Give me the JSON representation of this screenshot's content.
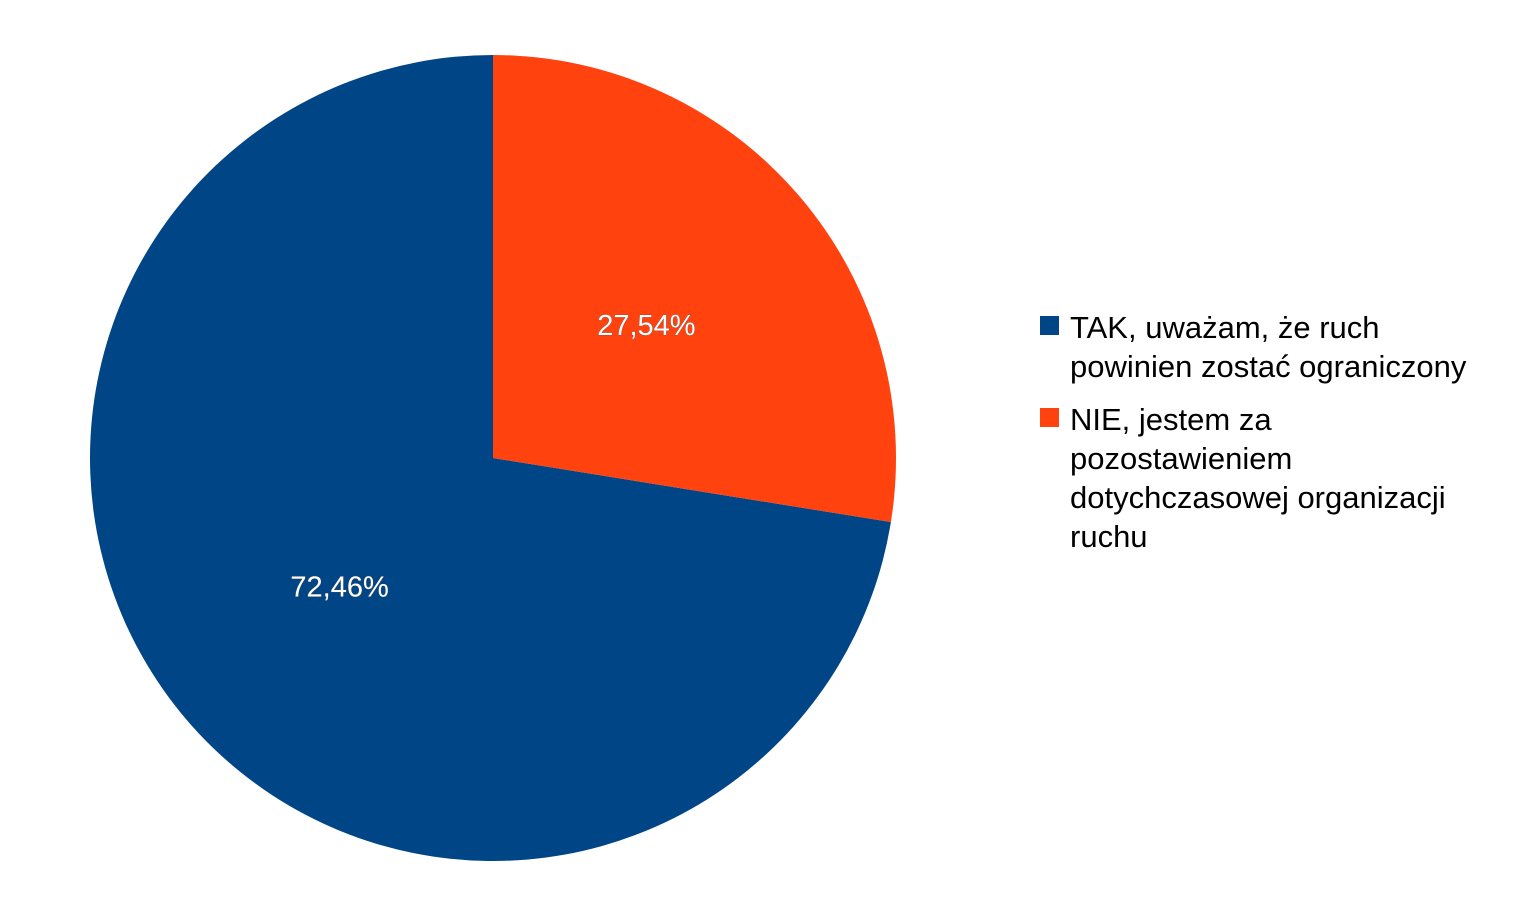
{
  "chart_data": {
    "type": "pie",
    "categories": [
      "TAK, uważam, że ruch powinien zostać ograniczony",
      "NIE, jestem za pozostawieniem dotychczasowej organizacji ruchu"
    ],
    "values": [
      72.46,
      27.54
    ],
    "value_labels": [
      "72,46%",
      "27,54%"
    ],
    "colors": [
      "#004586",
      "#ff420e"
    ],
    "legend": "right"
  }
}
